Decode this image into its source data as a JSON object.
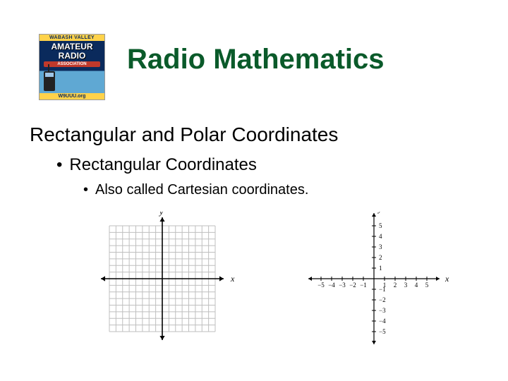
{
  "logo": {
    "top": "WABASH VALLEY",
    "line1": "AMATEUR",
    "line2": "RADIO",
    "assoc": "ASSOCIATION",
    "callsign": "W9UUU.org"
  },
  "title": "Radio Mathematics",
  "heading": "Rectangular and Polar Coordinates",
  "bullet1": "Rectangular Coordinates",
  "bullet2": "Also called Cartesian coordinates.",
  "chart1": {
    "type": "cartesian-grid-axes-only",
    "x_label": "x",
    "y_label": "y",
    "range": [
      -8,
      8
    ],
    "grid_step": 1,
    "grid_color": "#bfbfbf",
    "axis_color": "#000000",
    "background_color": "#ffffff",
    "has_arrowheads": true,
    "show_ticks": false,
    "show_numbers": false
  },
  "chart2": {
    "type": "cartesian-ticked-numbered",
    "x_label": "x",
    "y_label": "y",
    "range": [
      -5,
      5
    ],
    "tick_step": 1,
    "axis_color": "#000000",
    "background_color": "#ffffff",
    "has_arrowheads": true,
    "show_grid": false,
    "tick_labels_x": [
      "-5",
      "-4",
      "-3",
      "-2",
      "-1",
      "1",
      "2",
      "3",
      "4",
      "5"
    ],
    "tick_labels_y": [
      "-5",
      "-4",
      "-3",
      "-2",
      "-1",
      "1",
      "2",
      "3",
      "4",
      "5"
    ],
    "label_fontsize": 9
  },
  "colors": {
    "title_color": "#0a5a2a",
    "text_color": "#000000"
  }
}
